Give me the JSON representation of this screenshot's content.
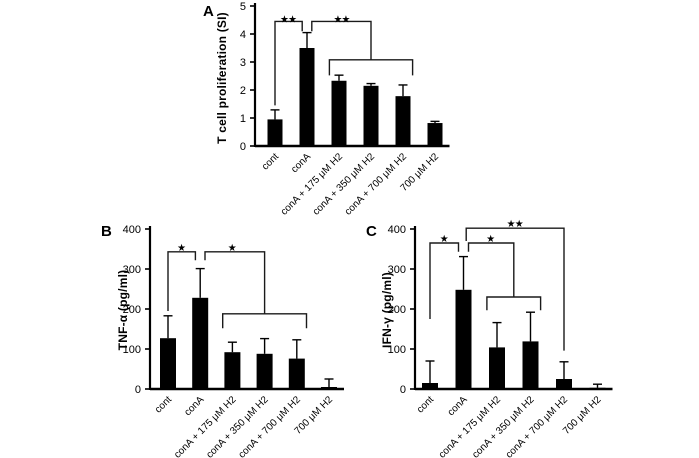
{
  "figure": {
    "background": "#ffffff",
    "colors": {
      "bar": "#000000",
      "axis": "#000000",
      "bracket": "#1a1a1a"
    }
  },
  "chart_data": [
    {
      "panel": "A",
      "type": "bar",
      "ylabel": "T cell proliferation (SI)",
      "xlabel": "",
      "ylim": [
        0,
        5
      ],
      "yticks": [
        0,
        1,
        2,
        3,
        4,
        5
      ],
      "grid": false,
      "legend": null,
      "bar_color": "#000000",
      "categories": [
        "cont",
        "conA",
        "conA + 175 μM H2",
        "conA + 350 μM H2",
        "conA + 700 μM H2",
        "700 μM H2"
      ],
      "values": [
        0.95,
        3.5,
        2.33,
        2.15,
        1.78,
        0.82
      ],
      "errors": [
        0.34,
        0.55,
        0.2,
        0.08,
        0.4,
        0.06
      ],
      "annotations": [
        {
          "label": "★★",
          "label_at": [
            0.43,
            4.68
          ],
          "points": [
            [
              0,
              1.45
            ],
            [
              0,
              4.45
            ],
            [
              0.85,
              4.45
            ],
            [
              0.85,
              4.1
            ]
          ]
        },
        {
          "label": "★★",
          "label_at": [
            2.1,
            4.68
          ],
          "points": [
            [
              1.15,
              4.1
            ],
            [
              1.15,
              4.45
            ],
            [
              3.0,
              4.45
            ],
            [
              3.0,
              3.08
            ]
          ]
        },
        {
          "label": "",
          "points": [
            [
              1.7,
              2.52
            ],
            [
              1.7,
              3.08
            ],
            [
              4.3,
              3.08
            ],
            [
              4.3,
              2.52
            ]
          ]
        }
      ]
    },
    {
      "panel": "B",
      "type": "bar",
      "ylabel": "TNF-α (pg/ml)",
      "xlabel": "",
      "ylim": [
        0,
        400
      ],
      "yticks": [
        0,
        100,
        200,
        300,
        400
      ],
      "grid": false,
      "legend": null,
      "bar_color": "#000000",
      "categories": [
        "cont",
        "conA",
        "conA + 175 μM H2",
        "conA + 350 μM H2",
        "conA + 700 μM H2",
        "700 μM H2"
      ],
      "values": [
        127,
        228,
        92,
        88,
        76,
        5
      ],
      "errors": [
        56,
        73,
        25,
        38,
        47,
        20
      ],
      "annotations": [
        {
          "label": "★",
          "label_at": [
            0.43,
            364
          ],
          "points": [
            [
              0,
              195
            ],
            [
              0,
              343
            ],
            [
              0.85,
              343
            ],
            [
              0.85,
              322
            ]
          ]
        },
        {
          "label": "★",
          "label_at": [
            2.0,
            364
          ],
          "points": [
            [
              1.15,
              322
            ],
            [
              1.15,
              343
            ],
            [
              3.0,
              343
            ],
            [
              3.0,
              188
            ]
          ]
        },
        {
          "label": "",
          "points": [
            [
              1.7,
              152
            ],
            [
              1.7,
              188
            ],
            [
              4.3,
              188
            ],
            [
              4.3,
              152
            ]
          ]
        }
      ]
    },
    {
      "panel": "C",
      "type": "bar",
      "ylabel": "IFN-γ (pg/ml)",
      "xlabel": "",
      "ylim": [
        0,
        400
      ],
      "yticks": [
        0,
        100,
        200,
        300,
        400
      ],
      "grid": false,
      "legend": null,
      "bar_color": "#000000",
      "categories": [
        "cont",
        "conA",
        "conA + 175 μM H2",
        "conA + 350 μM H2",
        "conA + 700 μM H2",
        "700 μM H2"
      ],
      "values": [
        15,
        248,
        104,
        119,
        25,
        3
      ],
      "errors": [
        55,
        83,
        62,
        73,
        43,
        9
      ],
      "annotations": [
        {
          "label": "★",
          "label_at": [
            0.43,
            386
          ],
          "points": [
            [
              0,
              175
            ],
            [
              0,
              365
            ],
            [
              0.85,
              365
            ],
            [
              0.85,
              343
            ]
          ]
        },
        {
          "label": "★",
          "label_at": [
            1.82,
            386
          ],
          "points": [
            [
              1.15,
              343
            ],
            [
              1.15,
              365
            ],
            [
              2.5,
              365
            ],
            [
              2.5,
              230
            ]
          ]
        },
        {
          "label": "",
          "points": [
            [
              1.7,
              197
            ],
            [
              1.7,
              230
            ],
            [
              3.3,
              230
            ],
            [
              3.3,
              197
            ]
          ]
        },
        {
          "label": "★★",
          "label_at": [
            2.55,
            424
          ],
          "points": [
            [
              1.08,
              370
            ],
            [
              1.08,
              402
            ],
            [
              4.0,
              402
            ],
            [
              4.0,
              96
            ]
          ]
        }
      ]
    }
  ]
}
